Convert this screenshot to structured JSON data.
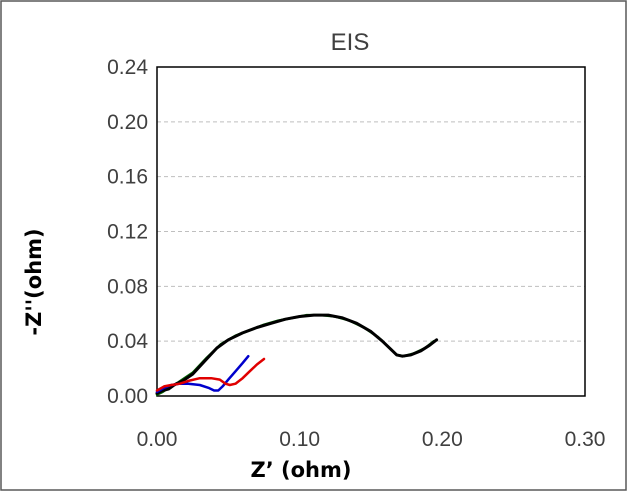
{
  "chart_data": {
    "type": "line",
    "title": "EIS",
    "xlabel": "Z’ (ohm)",
    "ylabel": "-Z''(ohm)",
    "xlim": [
      0,
      0.3
    ],
    "ylim": [
      0,
      0.24
    ],
    "x_ticks": [
      "0.00",
      "0.10",
      "0.20",
      "0.30"
    ],
    "y_ticks": [
      "0.00",
      "0.04",
      "0.08",
      "0.12",
      "0.16",
      "0.20",
      "0.24"
    ],
    "grid": "horizontal",
    "legend": "none",
    "series": [
      {
        "color": "#006400",
        "points": [
          [
            0.0,
            0.001
          ],
          [
            0.004,
            0.003
          ],
          [
            0.008,
            0.006
          ],
          [
            0.015,
            0.01
          ],
          [
            0.025,
            0.017
          ],
          [
            0.035,
            0.028
          ],
          [
            0.045,
            0.038
          ],
          [
            0.055,
            0.044
          ],
          [
            0.065,
            0.048
          ],
          [
            0.075,
            0.052
          ],
          [
            0.085,
            0.055
          ],
          [
            0.095,
            0.057
          ],
          [
            0.105,
            0.059
          ],
          [
            0.115,
            0.059
          ],
          [
            0.125,
            0.058
          ],
          [
            0.135,
            0.055
          ],
          [
            0.145,
            0.05
          ],
          [
            0.155,
            0.043
          ],
          [
            0.163,
            0.035
          ],
          [
            0.168,
            0.03
          ],
          [
            0.173,
            0.029
          ],
          [
            0.18,
            0.031
          ],
          [
            0.188,
            0.035
          ],
          [
            0.194,
            0.04
          ]
        ]
      },
      {
        "color": "#000000",
        "points": [
          [
            0.0,
            0.002
          ],
          [
            0.004,
            0.004
          ],
          [
            0.008,
            0.005
          ],
          [
            0.012,
            0.008
          ],
          [
            0.018,
            0.011
          ],
          [
            0.025,
            0.016
          ],
          [
            0.033,
            0.025
          ],
          [
            0.042,
            0.035
          ],
          [
            0.05,
            0.041
          ],
          [
            0.06,
            0.046
          ],
          [
            0.07,
            0.05
          ],
          [
            0.08,
            0.053
          ],
          [
            0.09,
            0.056
          ],
          [
            0.1,
            0.058
          ],
          [
            0.11,
            0.059
          ],
          [
            0.12,
            0.059
          ],
          [
            0.13,
            0.057
          ],
          [
            0.14,
            0.053
          ],
          [
            0.15,
            0.047
          ],
          [
            0.158,
            0.04
          ],
          [
            0.164,
            0.034
          ],
          [
            0.168,
            0.03
          ],
          [
            0.172,
            0.029
          ],
          [
            0.178,
            0.03
          ],
          [
            0.185,
            0.033
          ],
          [
            0.191,
            0.037
          ],
          [
            0.196,
            0.041
          ]
        ]
      },
      {
        "color": "#0000CC",
        "points": [
          [
            0.0,
            0.003
          ],
          [
            0.005,
            0.006
          ],
          [
            0.01,
            0.008
          ],
          [
            0.016,
            0.009
          ],
          [
            0.022,
            0.009
          ],
          [
            0.03,
            0.008
          ],
          [
            0.036,
            0.006
          ],
          [
            0.04,
            0.004
          ],
          [
            0.043,
            0.004
          ],
          [
            0.046,
            0.007
          ],
          [
            0.05,
            0.012
          ],
          [
            0.055,
            0.018
          ],
          [
            0.06,
            0.024
          ],
          [
            0.064,
            0.029
          ]
        ]
      },
      {
        "color": "#E00000",
        "points": [
          [
            0.0,
            0.004
          ],
          [
            0.005,
            0.007
          ],
          [
            0.01,
            0.008
          ],
          [
            0.016,
            0.009
          ],
          [
            0.022,
            0.011
          ],
          [
            0.03,
            0.013
          ],
          [
            0.038,
            0.013
          ],
          [
            0.044,
            0.012
          ],
          [
            0.048,
            0.009
          ],
          [
            0.051,
            0.008
          ],
          [
            0.055,
            0.009
          ],
          [
            0.06,
            0.013
          ],
          [
            0.065,
            0.018
          ],
          [
            0.07,
            0.023
          ],
          [
            0.075,
            0.027
          ]
        ]
      }
    ]
  }
}
